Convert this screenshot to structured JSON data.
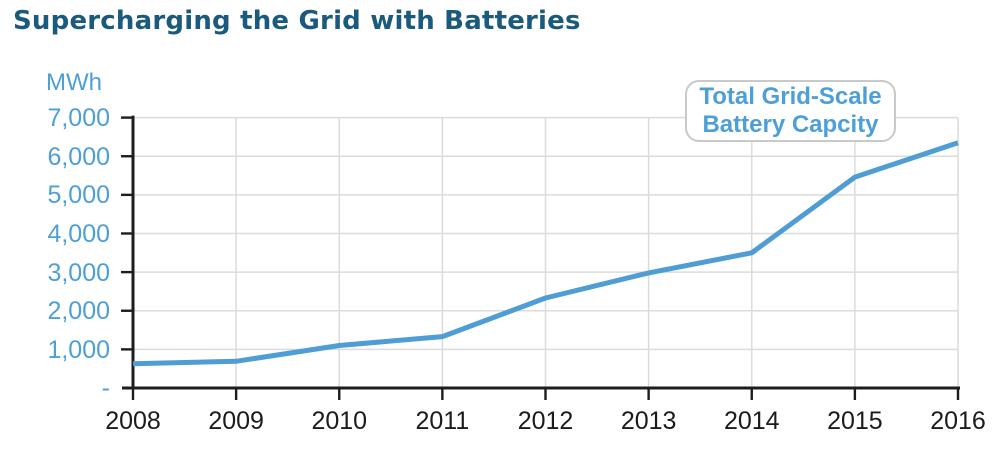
{
  "title": "Supercharging the Grid with Batteries",
  "y_axis": {
    "unit_label": "MWh",
    "tick_labels": [
      "7,000",
      "6,000",
      "5,000",
      "4,000",
      "3,000",
      "2,000",
      "1,000",
      "-"
    ]
  },
  "x_axis": {
    "tick_labels": [
      "2008",
      "2009",
      "2010",
      "2011",
      "2012",
      "2013",
      "2014",
      "2015",
      "2016"
    ]
  },
  "annotation": {
    "line1": "Total Grid-Scale",
    "line2": "Battery Capcity"
  },
  "colors": {
    "accent_blue": "#4E9DD4",
    "label_blue": "#4D9FD8",
    "title_teal": "#1A5A7C",
    "grid_gray": "#DBDBDB",
    "axis_black": "#1D1D1D",
    "annotation_border": "#C9C9C9"
  },
  "chart_data": {
    "type": "line",
    "title": "Supercharging the Grid with Batteries",
    "x": [
      2008,
      2009,
      2010,
      2011,
      2012,
      2013,
      2014,
      2015,
      2016
    ],
    "values": [
      630,
      690,
      1100,
      1330,
      2330,
      2980,
      3500,
      5460,
      6350
    ],
    "series_label": "Total Grid-Scale Battery Capcity",
    "xlabel": "",
    "ylabel": "MWh",
    "ylim": [
      0,
      7000
    ],
    "y_tick_step": 1000,
    "grid": true,
    "legend_position": "annotation-box-top-right"
  }
}
